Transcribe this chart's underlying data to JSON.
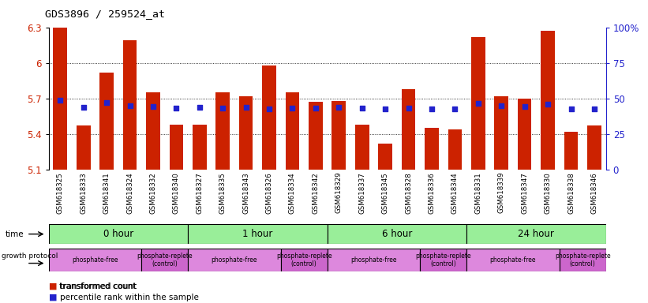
{
  "title": "GDS3896 / 259524_at",
  "samples": [
    "GSM618325",
    "GSM618333",
    "GSM618341",
    "GSM618324",
    "GSM618332",
    "GSM618340",
    "GSM618327",
    "GSM618335",
    "GSM618343",
    "GSM618326",
    "GSM618334",
    "GSM618342",
    "GSM618329",
    "GSM618337",
    "GSM618345",
    "GSM618328",
    "GSM618336",
    "GSM618344",
    "GSM618331",
    "GSM618339",
    "GSM618347",
    "GSM618330",
    "GSM618338",
    "GSM618346"
  ],
  "bar_values": [
    6.3,
    5.47,
    5.92,
    6.19,
    5.75,
    5.48,
    5.48,
    5.75,
    5.72,
    5.98,
    5.75,
    5.67,
    5.68,
    5.48,
    5.32,
    5.78,
    5.45,
    5.44,
    6.22,
    5.72,
    5.7,
    6.27,
    5.42,
    5.47
  ],
  "percentile_values": [
    5.685,
    5.625,
    5.665,
    5.64,
    5.63,
    5.62,
    5.625,
    5.62,
    5.625,
    5.615,
    5.62,
    5.62,
    5.625,
    5.62,
    5.615,
    5.618,
    5.615,
    5.615,
    5.66,
    5.64,
    5.635,
    5.655,
    5.61,
    5.615
  ],
  "bar_base": 5.1,
  "ylim": [
    5.1,
    6.3
  ],
  "yticks": [
    5.1,
    5.4,
    5.7,
    6.0,
    6.3
  ],
  "ytick_labels": [
    "5.1",
    "5.4",
    "5.7",
    "6",
    "6.3"
  ],
  "right_yticks": [
    0,
    25,
    50,
    75,
    100
  ],
  "right_ytick_labels": [
    "0",
    "25",
    "50",
    "75",
    "100%"
  ],
  "bar_color": "#cc2200",
  "blue_color": "#2222cc",
  "time_groups": [
    {
      "label": "0 hour",
      "start": 0,
      "end": 6
    },
    {
      "label": "1 hour",
      "start": 6,
      "end": 12
    },
    {
      "label": "6 hour",
      "start": 12,
      "end": 18
    },
    {
      "label": "24 hour",
      "start": 18,
      "end": 24
    }
  ],
  "proto_groups": [
    {
      "label": "phosphate-free",
      "start": 0,
      "end": 4,
      "color": "#dd88dd"
    },
    {
      "label": "phosphate-replete\n(control)",
      "start": 4,
      "end": 6,
      "color": "#cc66cc"
    },
    {
      "label": "phosphate-free",
      "start": 6,
      "end": 10,
      "color": "#dd88dd"
    },
    {
      "label": "phosphate-replete\n(control)",
      "start": 10,
      "end": 12,
      "color": "#cc66cc"
    },
    {
      "label": "phosphate-free",
      "start": 12,
      "end": 16,
      "color": "#dd88dd"
    },
    {
      "label": "phosphate-replete\n(control)",
      "start": 16,
      "end": 18,
      "color": "#cc66cc"
    },
    {
      "label": "phosphate-free",
      "start": 18,
      "end": 22,
      "color": "#dd88dd"
    },
    {
      "label": "phosphate-replete\n(control)",
      "start": 22,
      "end": 24,
      "color": "#cc66cc"
    }
  ],
  "time_color": "#99ee99",
  "bg_color": "#ffffff",
  "tick_label_color_left": "#cc2200",
  "tick_label_color_right": "#2222cc",
  "grid_dotted_color": "#000000"
}
